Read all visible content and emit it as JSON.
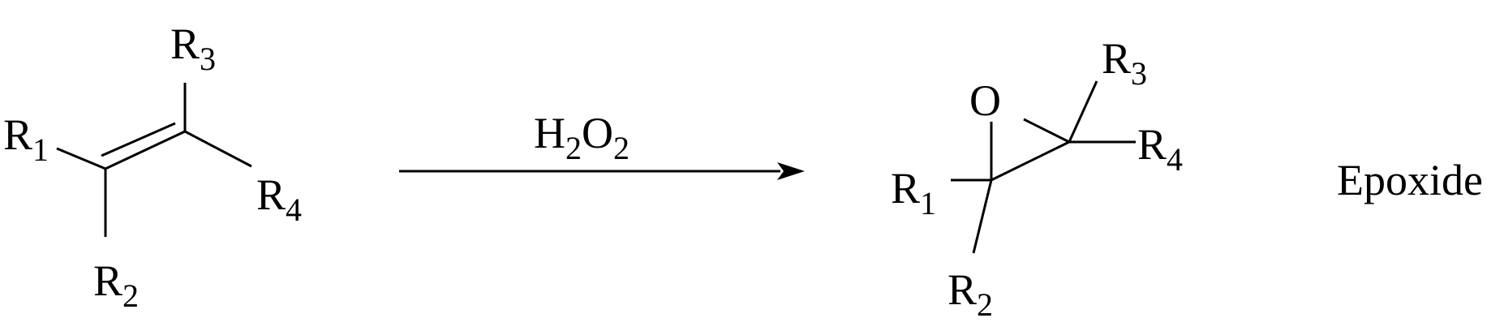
{
  "reactant": {
    "r1": {
      "main": "R",
      "sub": "1"
    },
    "r2": {
      "main": "R",
      "sub": "2"
    },
    "r3": {
      "main": "R",
      "sub": "3"
    },
    "r4": {
      "main": "R",
      "sub": "4"
    }
  },
  "reagent": {
    "h": "H",
    "h_sub": "2",
    "o": "O",
    "o_sub": "2"
  },
  "product": {
    "oxygen": "O",
    "r1": {
      "main": "R",
      "sub": "1"
    },
    "r2": {
      "main": "R",
      "sub": "2"
    },
    "r3": {
      "main": "R",
      "sub": "3"
    },
    "r4": {
      "main": "R",
      "sub": "4"
    }
  },
  "product_name": "Epoxide",
  "colors": {
    "ink": "#000000",
    "background": "#ffffff"
  }
}
